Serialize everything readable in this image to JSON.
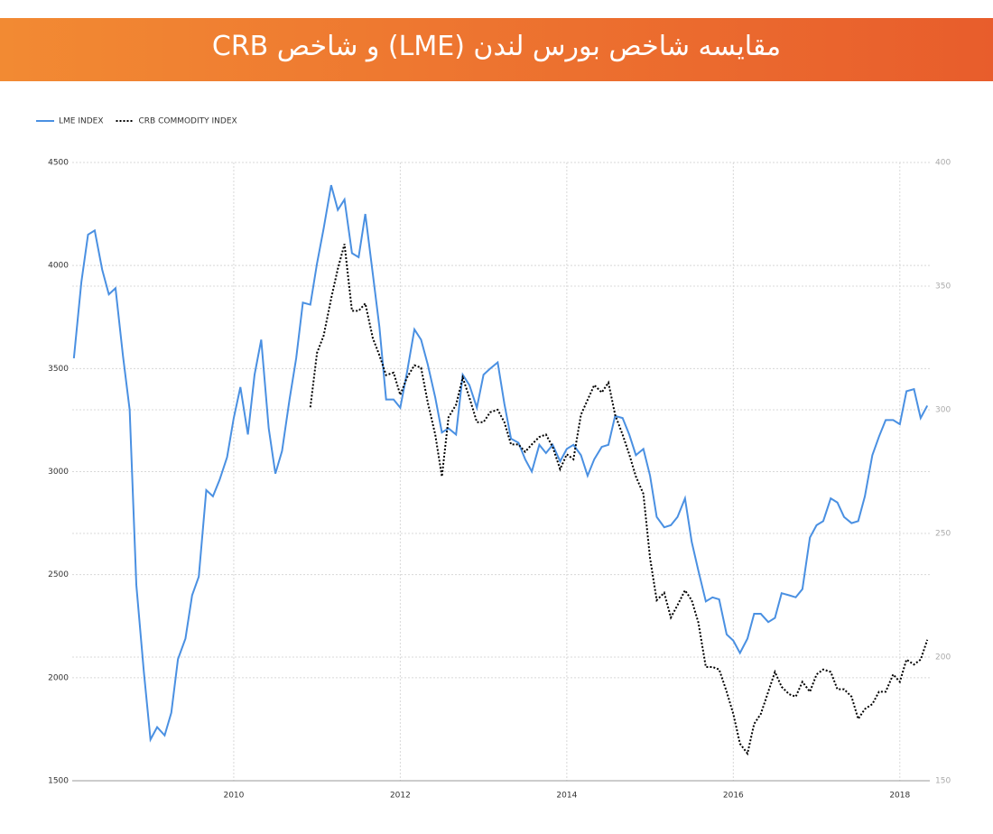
{
  "chart_data": {
    "type": "line",
    "title": "مقایسه شاخص بورس لندن (LME) و شاخص CRB",
    "x": [
      2008.08,
      2008.17,
      2008.25,
      2008.33,
      2008.42,
      2008.5,
      2008.58,
      2008.67,
      2008.75,
      2008.83,
      2008.92,
      2009,
      2009.08,
      2009.17,
      2009.25,
      2009.33,
      2009.42,
      2009.5,
      2009.58,
      2009.67,
      2009.75,
      2009.83,
      2009.92,
      2010,
      2010.08,
      2010.17,
      2010.25,
      2010.33,
      2010.42,
      2010.5,
      2010.58,
      2010.67,
      2010.75,
      2010.83,
      2010.92,
      2011,
      2011.08,
      2011.17,
      2011.25,
      2011.33,
      2011.42,
      2011.5,
      2011.58,
      2011.67,
      2011.75,
      2011.83,
      2011.92,
      2012,
      2012.08,
      2012.17,
      2012.25,
      2012.33,
      2012.42,
      2012.5,
      2012.58,
      2012.67,
      2012.75,
      2012.83,
      2012.92,
      2013,
      2013.08,
      2013.17,
      2013.25,
      2013.33,
      2013.42,
      2013.5,
      2013.58,
      2013.67,
      2013.75,
      2013.83,
      2013.92,
      2014,
      2014.08,
      2014.17,
      2014.25,
      2014.33,
      2014.42,
      2014.5,
      2014.58,
      2014.67,
      2014.75,
      2014.83,
      2014.92,
      2015,
      2015.08,
      2015.17,
      2015.25,
      2015.33,
      2015.42,
      2015.5,
      2015.58,
      2015.67,
      2015.75,
      2015.83,
      2015.92,
      2016,
      2016.08,
      2016.17,
      2016.25,
      2016.33,
      2016.42,
      2016.5,
      2016.58,
      2016.67,
      2016.75,
      2016.83,
      2016.92,
      2017,
      2017.08,
      2017.17,
      2017.25,
      2017.33,
      2017.42,
      2017.5,
      2017.58,
      2017.67,
      2017.75,
      2017.83,
      2017.92,
      2018,
      2018.08,
      2018.17,
      2018.25,
      2018.33
    ],
    "series": [
      {
        "name": "LME INDEX",
        "color": "#4a90e2",
        "dash": "solid",
        "values": [
          3550,
          3920,
          4150,
          4170,
          3980,
          3860,
          3890,
          3560,
          3300,
          2450,
          2030,
          1700,
          1760,
          1720,
          1830,
          2090,
          2190,
          2400,
          2490,
          2910,
          2880,
          2960,
          3070,
          3260,
          3410,
          3180,
          3470,
          3640,
          3210,
          2990,
          3100,
          3350,
          3550,
          3820,
          3810,
          4010,
          4180,
          4390,
          4270,
          4320,
          4060,
          4040,
          4250,
          3960,
          3700,
          3350,
          3350,
          3310,
          3480,
          3690,
          3640,
          3520,
          3360,
          3190,
          3210,
          3180,
          3470,
          3420,
          3310,
          3470,
          3500,
          3530,
          3330,
          3160,
          3140,
          3060,
          3000,
          3130,
          3090,
          3130,
          3050,
          3110,
          3130,
          3080,
          2980,
          3060,
          3120,
          3130,
          3270,
          3260,
          3180,
          3080,
          3110,
          2980,
          2780,
          2730,
          2740,
          2780,
          2870,
          2660,
          2520,
          2370,
          2390,
          2380,
          2210,
          2180,
          2120,
          2190,
          2310,
          2310,
          2270,
          2290,
          2410,
          2400,
          2390,
          2430,
          2680,
          2740,
          2760,
          2870,
          2850,
          2780,
          2750,
          2760,
          2880,
          3080,
          3170,
          3250,
          3250,
          3230,
          3390,
          3400,
          3260,
          3320
        ]
      },
      {
        "name": "CRB COMMODITY INDEX",
        "color": "#000000",
        "dash": "dotted",
        "axis": "y2",
        "values": [
          null,
          null,
          null,
          null,
          null,
          null,
          null,
          null,
          null,
          null,
          null,
          null,
          null,
          null,
          null,
          null,
          null,
          null,
          null,
          null,
          null,
          null,
          null,
          null,
          null,
          null,
          null,
          null,
          null,
          null,
          null,
          null,
          null,
          null,
          301,
          323,
          330,
          345,
          357,
          367,
          340,
          340,
          343,
          329,
          322,
          314,
          315,
          306,
          313,
          318,
          317,
          303,
          290,
          273,
          297,
          302,
          313,
          305,
          295,
          295,
          299,
          300,
          295,
          286,
          286,
          283,
          286,
          289,
          290,
          285,
          276,
          282,
          280,
          298,
          304,
          310,
          307,
          311,
          298,
          290,
          282,
          273,
          266,
          240,
          223,
          226,
          216,
          221,
          227,
          223,
          214,
          196,
          196,
          195,
          186,
          177,
          165,
          161,
          173,
          177,
          186,
          194,
          188,
          185,
          184,
          190,
          186,
          193,
          195,
          194,
          187,
          187,
          184,
          175,
          179,
          181,
          186,
          186,
          193,
          190,
          199,
          197,
          199,
          207
        ]
      }
    ],
    "xlim": [
      2008.06,
      2018.36
    ],
    "xticks": [
      2010,
      2012,
      2014,
      2016,
      2018
    ],
    "ylim": [
      1500,
      4500
    ],
    "yticks": [
      1500,
      2000,
      2500,
      3000,
      3500,
      4000,
      4500
    ],
    "y2lim": [
      150,
      400
    ],
    "y2ticks": [
      150,
      200,
      250,
      300,
      350,
      400
    ],
    "grid": true,
    "legend": "top-left"
  }
}
